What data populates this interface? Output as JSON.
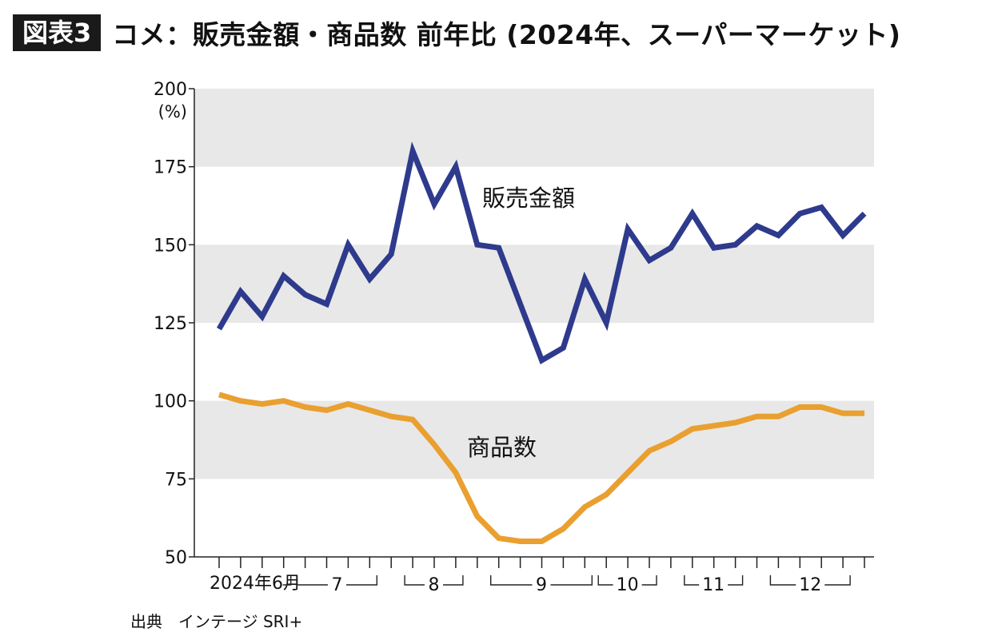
{
  "header": {
    "badge": "図表3",
    "title": "コメ：販売金額・商品数 前年比 (2024年、スーパーマーケット)"
  },
  "source": "出典　インテージ SRI+",
  "chart_data": {
    "type": "line",
    "title": "コメ：販売金額・商品数 前年比 (2024年、スーパーマーケット)",
    "ylabel": "(%)",
    "ylim": [
      50,
      200
    ],
    "yticks": [
      50,
      75,
      100,
      125,
      150,
      175,
      200
    ],
    "grid": "alternating horizontal bands",
    "x": [
      1,
      2,
      3,
      4,
      5,
      6,
      7,
      8,
      9,
      10,
      11,
      12,
      13,
      14,
      15,
      16,
      17,
      18,
      19,
      20,
      21,
      22,
      23,
      24,
      25,
      26,
      27,
      28,
      29,
      30,
      31
    ],
    "month_labels": [
      "2024年6月",
      "7",
      "8",
      "9",
      "10",
      "11",
      "12"
    ],
    "series": [
      {
        "name": "販売金額",
        "color": "#2e3a8c",
        "values": [
          123,
          135,
          127,
          140,
          134,
          131,
          150,
          139,
          147,
          180,
          163,
          175,
          150,
          149,
          131,
          113,
          117,
          139,
          125,
          155,
          145,
          149,
          160,
          149,
          150,
          156,
          153,
          160,
          162,
          153,
          160
        ]
      },
      {
        "name": "商品数",
        "color": "#e9a030",
        "values": [
          102,
          100,
          99,
          100,
          98,
          97,
          99,
          97,
          95,
          94,
          86,
          77,
          63,
          56,
          55,
          55,
          59,
          66,
          70,
          77,
          84,
          87,
          91,
          92,
          93,
          95,
          95,
          98,
          98,
          96,
          96
        ]
      }
    ]
  }
}
